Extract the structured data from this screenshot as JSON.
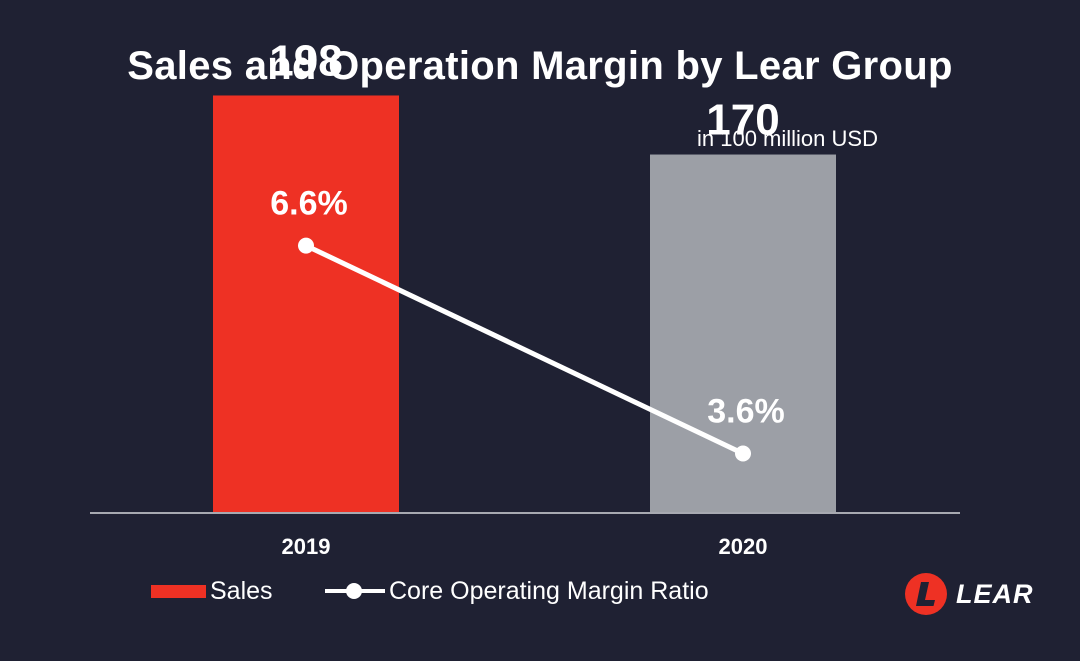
{
  "colors": {
    "background": "#1f2133",
    "sales_2019": "#ee3124",
    "sales_2020": "#9c9fa6",
    "line": "#ffffff",
    "axis": "#a7a9b1",
    "brand": "#ee3124"
  },
  "brand": {
    "logo_text": "LEAR",
    "logo_icon": "lear-logo-icon"
  },
  "chart_data": {
    "type": "bar",
    "title": "Sales and Operation Margin by Lear Group",
    "subtitle": "in 100 million USD",
    "categories": [
      "2019",
      "2020"
    ],
    "ylim": [
      0,
      230
    ],
    "series": [
      {
        "name": "Sales",
        "kind": "bar",
        "values": [
          198,
          170
        ],
        "labels": [
          "198",
          "170"
        ]
      },
      {
        "name": "Core Operating Margin Ratio",
        "kind": "line",
        "values": [
          6.6,
          3.6
        ],
        "labels": [
          "6.6%",
          "3.6%"
        ],
        "ylim": [
          0,
          10
        ]
      }
    ],
    "grid": false,
    "legend_position": "bottom-left"
  }
}
